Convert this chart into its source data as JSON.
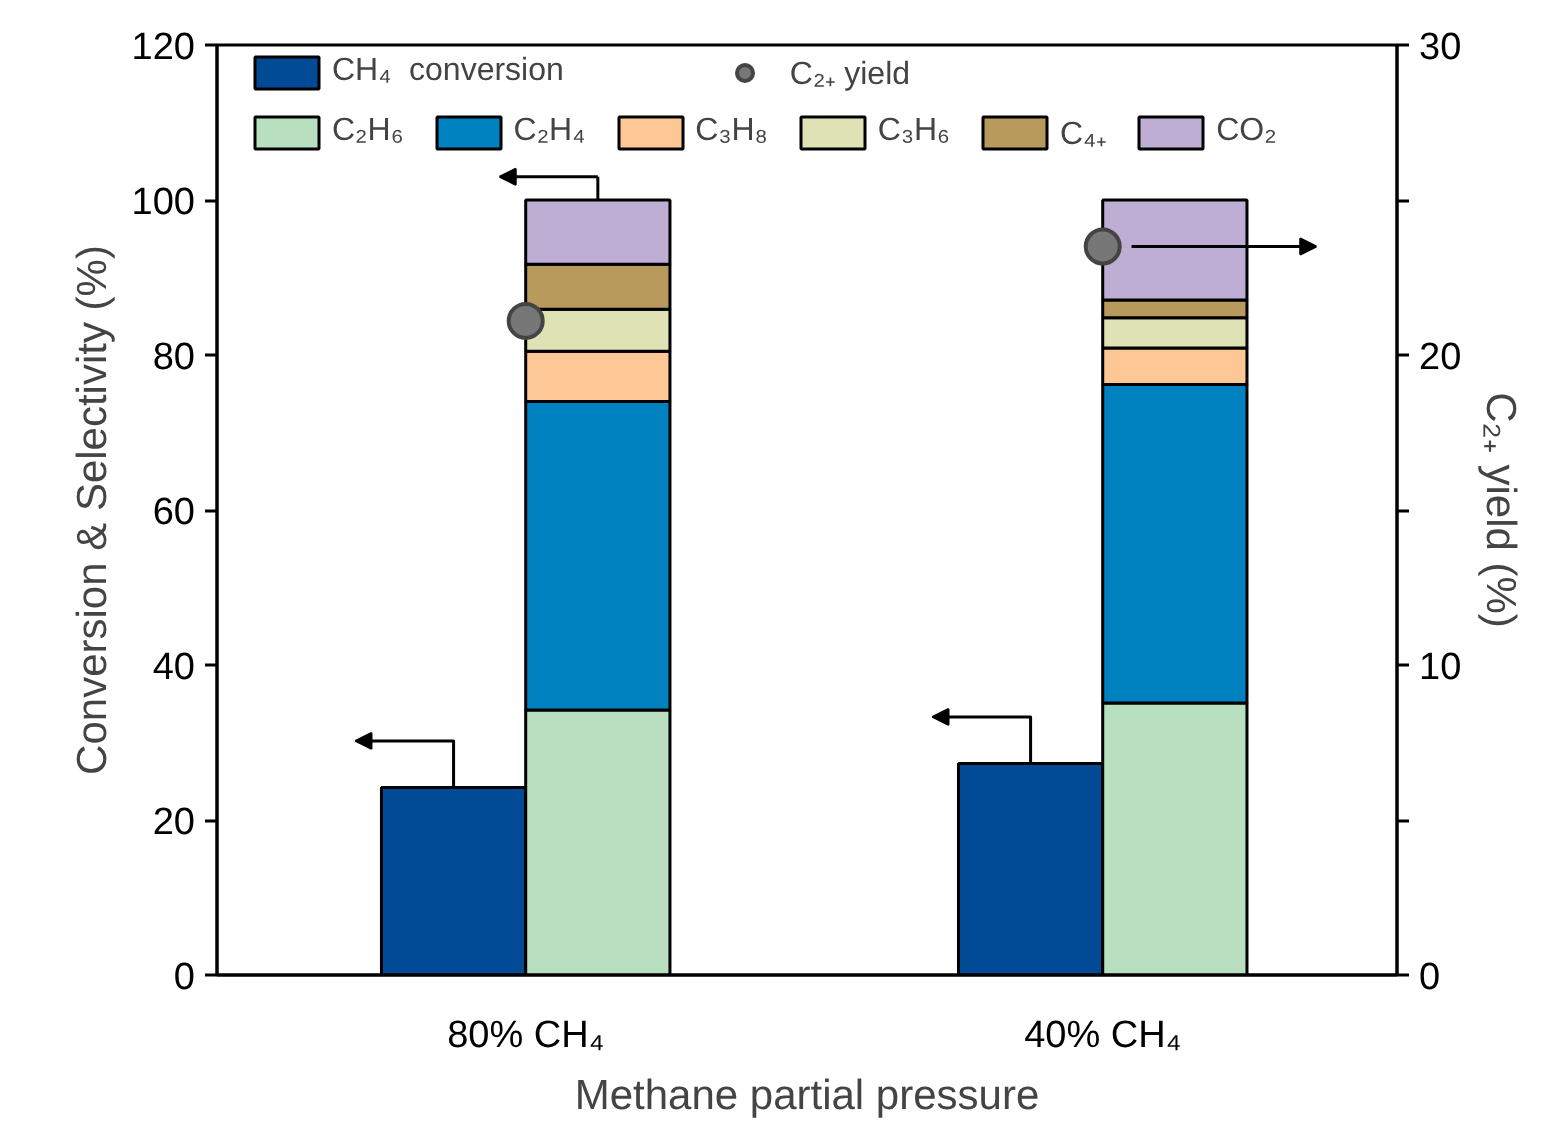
{
  "chart_data": {
    "type": "bar",
    "xlabel": "Methane partial pressure",
    "ylabel": "Conversion & Selectivity (%)",
    "y2label": "C₂₊ yield (%)",
    "categories": [
      "80% CH₄",
      "40% CH₄"
    ],
    "series": [
      {
        "name": "CH₄  conversion",
        "color": "#004a96",
        "values": [
          24.2,
          27.3
        ]
      },
      {
        "name": "C₂H₆",
        "color": "#b7dfc0",
        "values": [
          34.2,
          35.1
        ],
        "base": [
          0,
          0
        ]
      },
      {
        "name": "C₂H₄",
        "color": "#0082c0",
        "values": [
          39.8,
          41.1
        ],
        "base": [
          34.2,
          35.1
        ]
      },
      {
        "name": "C₃H₈",
        "color": "#fdc896",
        "values": [
          6.5,
          4.7
        ],
        "base": [
          74.0,
          76.2
        ]
      },
      {
        "name": "C₃H₆",
        "color": "#dfe2b4",
        "values": [
          5.4,
          3.9
        ],
        "base": [
          80.5,
          80.9
        ]
      },
      {
        "name": "C₄₊",
        "color": "#b89a5c",
        "values": [
          5.8,
          2.3
        ],
        "base": [
          85.9,
          84.8
        ]
      },
      {
        "name": "CO₂",
        "color": "#bfaed4",
        "values": [
          8.3,
          12.9
        ],
        "base": [
          91.7,
          87.1
        ]
      },
      {
        "name": "C₂₊ yield",
        "type": "scatter",
        "axis": "y2",
        "color": "#777777",
        "marker": "circle",
        "values": [
          21.1,
          23.5
        ]
      }
    ],
    "ylim": [
      0,
      120
    ],
    "yticks": [
      0,
      20,
      40,
      60,
      80,
      100,
      120
    ],
    "y2lim": [
      0,
      30
    ],
    "y2ticks": [
      0,
      {
        "value": 5,
        "label": null
      },
      10,
      {
        "value": 15,
        "label": null
      },
      20,
      {
        "value": 25,
        "label": null
      },
      30
    ],
    "grid": false,
    "legend": "top"
  }
}
